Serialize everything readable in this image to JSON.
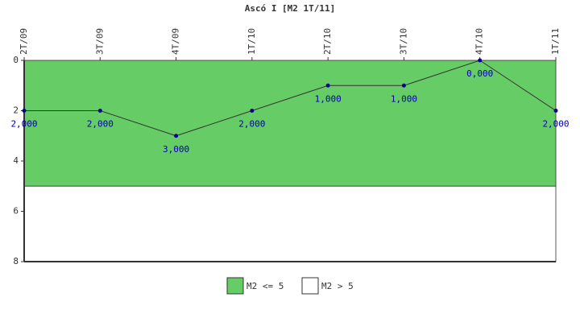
{
  "chart_data": {
    "type": "line",
    "title": "Ascó I [M2 1T/11]",
    "categories": [
      "2T/09",
      "3T/09",
      "4T/09",
      "1T/10",
      "2T/10",
      "3T/10",
      "4T/10",
      "1T/11"
    ],
    "series": [
      {
        "name": "M2",
        "color": "#333333",
        "marker_color": "#000099",
        "values": [
          2,
          2,
          3,
          2,
          1,
          1,
          0,
          2
        ],
        "value_labels": [
          "2,000",
          "2,000",
          "3,000",
          "2,000",
          "1,000",
          "1,000",
          "0,000",
          "2,000"
        ]
      }
    ],
    "bands": [
      {
        "name": "M2 <= 5",
        "color": "#66cc66",
        "range": [
          0,
          5
        ]
      },
      {
        "name": "M2 > 5",
        "color": "#ffffff",
        "range": [
          5,
          8
        ]
      }
    ],
    "ylim": [
      0,
      8
    ],
    "yticks": [
      0,
      2,
      4,
      6,
      8
    ],
    "y_inverted": true
  }
}
